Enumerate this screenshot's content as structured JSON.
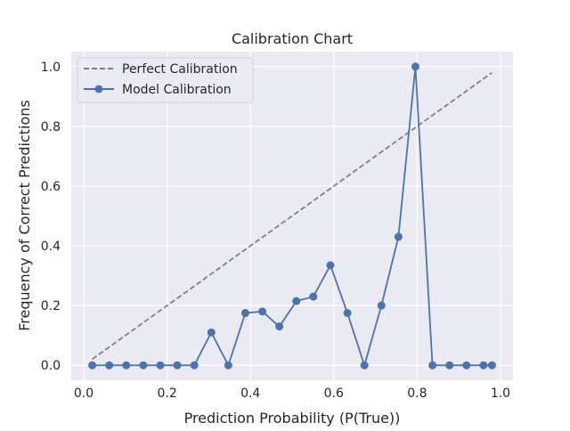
{
  "chart_data": {
    "type": "line",
    "title": "Calibration Chart",
    "xlabel": "Prediction Probability (P(True))",
    "ylabel": "Frequency of Correct Predictions",
    "xlim": [
      -0.03,
      1.03
    ],
    "ylim": [
      -0.05,
      1.05
    ],
    "xticks": [
      0.0,
      0.2,
      0.4,
      0.6,
      0.8,
      1.0
    ],
    "xtick_labels": [
      "0.0",
      "0.2",
      "0.4",
      "0.6",
      "0.8",
      "1.0"
    ],
    "yticks": [
      0.0,
      0.2,
      0.4,
      0.6,
      0.8,
      1.0
    ],
    "ytick_labels": [
      "0.0",
      "0.2",
      "0.4",
      "0.6",
      "0.8",
      "1.0"
    ],
    "grid": true,
    "legend_position": "top-left",
    "series": [
      {
        "name": "Perfect Calibration",
        "style": "dashed",
        "color": "#808080",
        "x": [
          0.0204,
          0.9796
        ],
        "y": [
          0.0204,
          0.9796
        ]
      },
      {
        "name": "Model Calibration",
        "style": "line-marker",
        "color": "#4c72b0",
        "x": [
          0.0204,
          0.0612,
          0.102,
          0.1429,
          0.1837,
          0.2245,
          0.2653,
          0.3061,
          0.3469,
          0.3878,
          0.4286,
          0.4694,
          0.5102,
          0.551,
          0.5918,
          0.6327,
          0.6735,
          0.7143,
          0.7551,
          0.7959,
          0.8367,
          0.8776,
          0.9184,
          0.9592,
          0.9796
        ],
        "y": [
          0.0,
          0.0,
          0.0,
          0.0,
          0.0,
          0.0,
          0.0,
          0.11,
          0.0,
          0.175,
          0.18,
          0.13,
          0.215,
          0.23,
          0.335,
          0.175,
          0.0,
          0.2,
          0.43,
          1.0,
          0.0,
          0.0,
          0.0,
          0.0,
          0.0
        ]
      }
    ]
  }
}
